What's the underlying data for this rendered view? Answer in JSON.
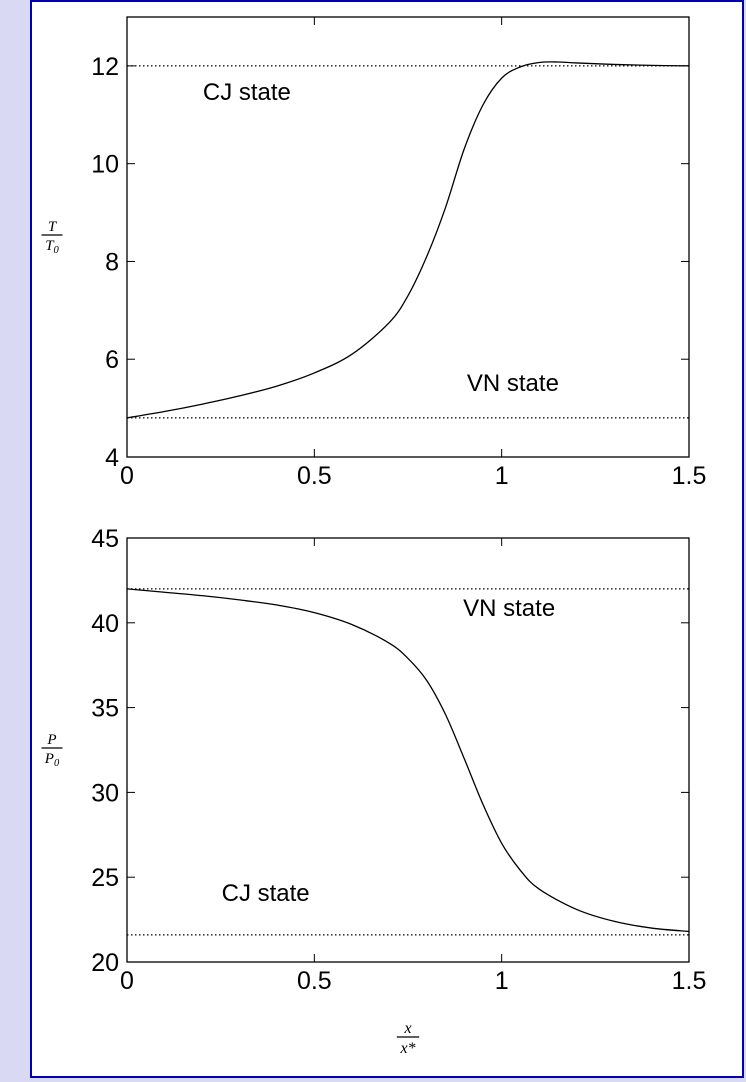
{
  "chart_data": [
    {
      "type": "line",
      "xlim": [
        0,
        1.5
      ],
      "ylim": [
        4,
        13
      ],
      "xticks": [
        0,
        0.5,
        1,
        1.5
      ],
      "xtick_labels": [
        "0",
        "0.5",
        "1",
        "1.5"
      ],
      "yticks": [
        4,
        6,
        8,
        10,
        12
      ],
      "ytick_labels": [
        "4",
        "6",
        "8",
        "10",
        "12"
      ],
      "ylabel": {
        "num": "T",
        "den": "T",
        "den_sub": "0"
      },
      "xlabel": "",
      "grid": false,
      "series": [
        {
          "style": "solid",
          "x": [
            0,
            0.1,
            0.2,
            0.3,
            0.4,
            0.5,
            0.6,
            0.7,
            0.75,
            0.8,
            0.85,
            0.9,
            0.95,
            1.0,
            1.05,
            1.1,
            1.15,
            1.2,
            1.3,
            1.4,
            1.5
          ],
          "y": [
            4.8,
            4.93,
            5.08,
            5.25,
            5.45,
            5.72,
            6.1,
            6.75,
            7.3,
            8.1,
            9.1,
            10.3,
            11.2,
            11.75,
            11.98,
            12.07,
            12.08,
            12.06,
            12.03,
            12.01,
            12.0
          ]
        }
      ],
      "reference_lines": [
        {
          "y": 12.0,
          "style": "dotted"
        },
        {
          "y": 4.8,
          "style": "dotted"
        }
      ],
      "annotations": [
        {
          "text": "CJ state",
          "x": 0.32,
          "y": 11.3
        },
        {
          "text": "VN state",
          "x": 1.03,
          "y": 5.35
        }
      ]
    },
    {
      "type": "line",
      "xlim": [
        0,
        1.5
      ],
      "ylim": [
        20,
        45
      ],
      "xticks": [
        0,
        0.5,
        1,
        1.5
      ],
      "xtick_labels": [
        "0",
        "0.5",
        "1",
        "1.5"
      ],
      "yticks": [
        20,
        25,
        30,
        35,
        40,
        45
      ],
      "ytick_labels": [
        "20",
        "25",
        "30",
        "35",
        "40",
        "45"
      ],
      "ylabel": {
        "num": "P",
        "den": "P",
        "den_sub": "0"
      },
      "xlabel": {
        "num": "x",
        "den": "x*"
      },
      "grid": false,
      "series": [
        {
          "style": "solid",
          "x": [
            0,
            0.1,
            0.2,
            0.3,
            0.4,
            0.5,
            0.6,
            0.7,
            0.75,
            0.8,
            0.85,
            0.9,
            0.95,
            1.0,
            1.05,
            1.1,
            1.2,
            1.3,
            1.4,
            1.5
          ],
          "y": [
            42.0,
            41.8,
            41.6,
            41.35,
            41.05,
            40.6,
            39.9,
            38.8,
            37.9,
            36.6,
            34.6,
            32.0,
            29.3,
            27.0,
            25.4,
            24.3,
            23.1,
            22.4,
            22.0,
            21.8
          ]
        }
      ],
      "reference_lines": [
        {
          "y": 42.0,
          "style": "dotted"
        },
        {
          "y": 21.6,
          "style": "dotted"
        }
      ],
      "annotations": [
        {
          "text": "VN state",
          "x": 1.02,
          "y": 40.4
        },
        {
          "text": "CJ state",
          "x": 0.37,
          "y": 23.6
        }
      ]
    }
  ]
}
